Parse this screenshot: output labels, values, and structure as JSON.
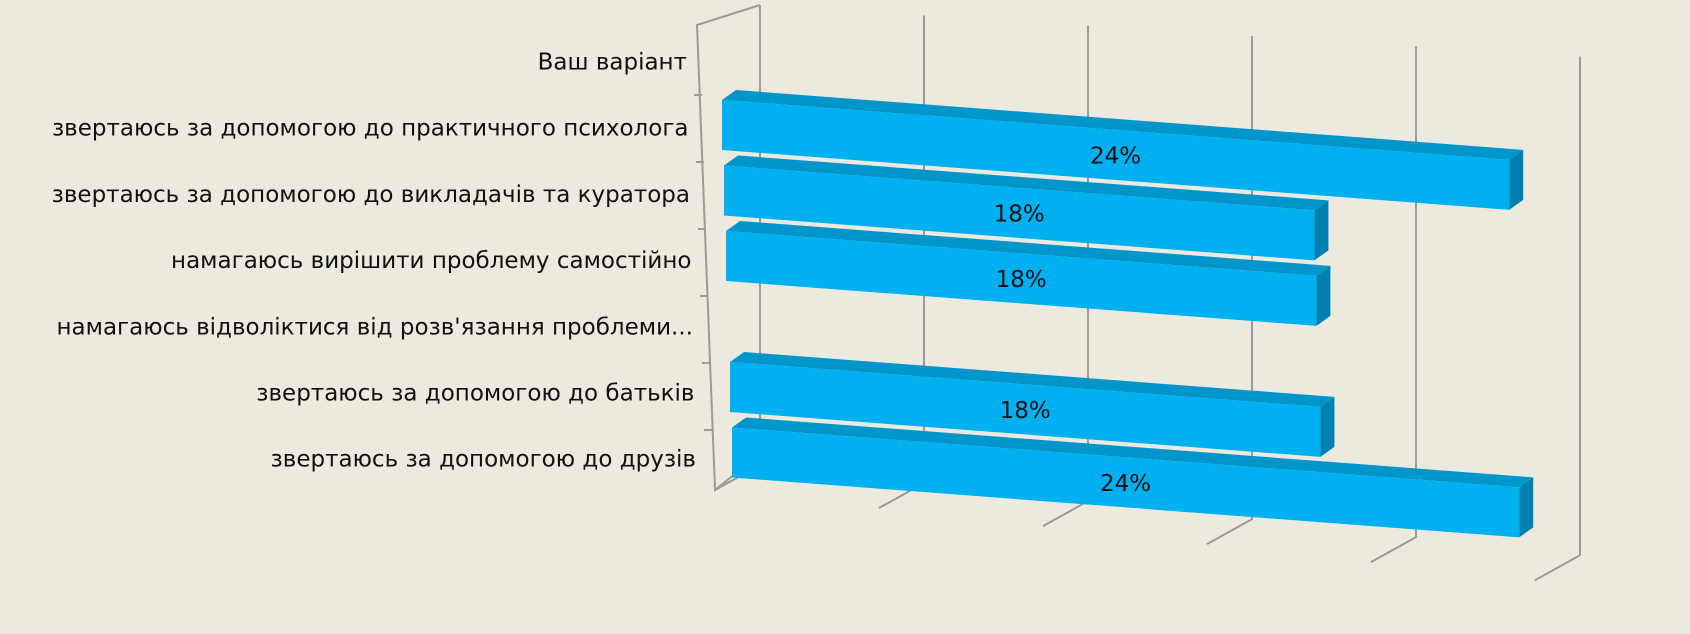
{
  "chart_data": {
    "type": "bar3d_horizontal",
    "categories": [
      "Ваш варіант",
      "звертаюсь за допомогою до практичного психолога",
      "звертаюсь за допомогою до викладачів та куратора",
      "намагаюсь вирішити проблему самостійно",
      "намагаюсь відволіктися від розв'язання проблеми...",
      "звертаюсь за допомогою до батьків",
      "звертаюсь за допомогою до друзів"
    ],
    "values": [
      null,
      24,
      18,
      18,
      null,
      18,
      24
    ],
    "value_labels": [
      null,
      "24%",
      "18%",
      "18%",
      null,
      "18%",
      "24%"
    ],
    "color": "#00b0f0",
    "xlim": [
      0,
      25
    ],
    "xticks": [
      0,
      5,
      10,
      15,
      20,
      25
    ],
    "grid": true
  }
}
